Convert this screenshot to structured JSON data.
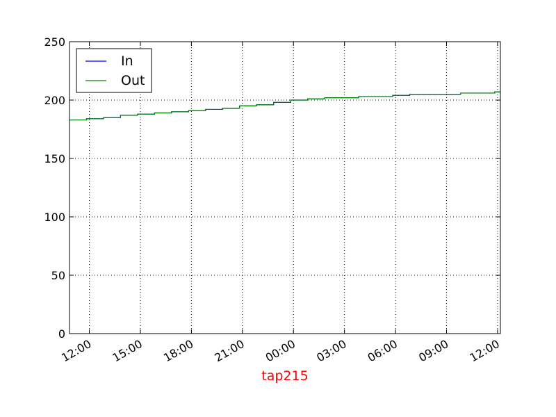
{
  "chart_data": {
    "type": "line",
    "title": "",
    "xlabel": "tap215",
    "ylabel": "",
    "xlabel_color": "#ff0000",
    "ylim": [
      0,
      250
    ],
    "xlim": [
      "10:50",
      "12:10 (+1 day)"
    ],
    "yticks": [
      "0",
      "50",
      "100",
      "150",
      "200",
      "250"
    ],
    "xticks": [
      "12:00",
      "15:00",
      "18:00",
      "21:00",
      "00:00",
      "03:00",
      "06:00",
      "09:00",
      "12:00"
    ],
    "grid": true,
    "legend_position": "top-left",
    "series": [
      {
        "name": "In",
        "color": "#0000ff",
        "x": [
          "10:50",
          "11:50",
          "12:50",
          "13:50",
          "14:50",
          "15:50",
          "16:50",
          "17:50",
          "18:50",
          "19:50",
          "20:50",
          "21:50",
          "22:50",
          "23:50",
          "00:50",
          "01:50",
          "02:50",
          "03:50",
          "04:50",
          "05:50",
          "06:50",
          "07:50",
          "08:50",
          "09:50",
          "10:50",
          "11:50",
          "12:10"
        ],
        "values": [
          183,
          184,
          185,
          187,
          188,
          189,
          190,
          191,
          192,
          193,
          195,
          196,
          198,
          200,
          201,
          202,
          202,
          203,
          203,
          204,
          205,
          205,
          205,
          206,
          206,
          207,
          207
        ]
      },
      {
        "name": "Out",
        "color": "#008000",
        "x": [
          "10:50",
          "11:50",
          "12:50",
          "13:50",
          "14:50",
          "15:50",
          "16:50",
          "17:50",
          "18:50",
          "19:50",
          "20:50",
          "21:50",
          "22:50",
          "23:50",
          "00:50",
          "01:50",
          "02:50",
          "03:50",
          "04:50",
          "05:50",
          "06:50",
          "07:50",
          "08:50",
          "09:50",
          "10:50",
          "11:50",
          "12:10"
        ],
        "values": [
          183,
          184,
          185,
          187,
          188,
          189,
          190,
          191,
          192,
          193,
          195,
          196,
          198,
          200,
          201,
          202,
          202,
          203,
          203,
          204,
          205,
          205,
          205,
          206,
          206,
          207,
          207
        ]
      }
    ]
  }
}
